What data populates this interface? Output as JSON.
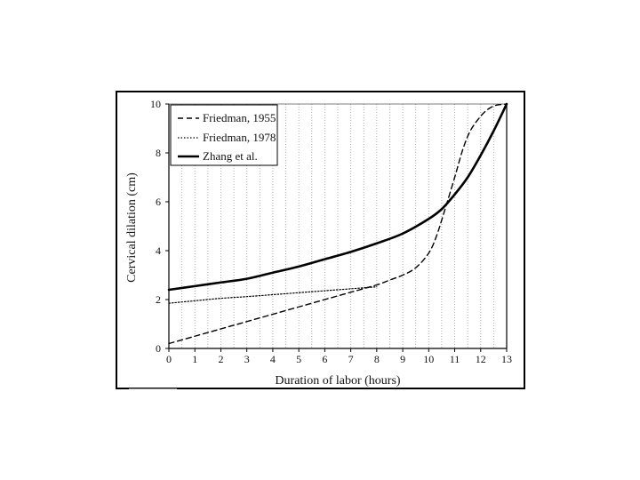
{
  "chart_data": {
    "type": "line",
    "xlabel": "Duration of labor (hours)",
    "ylabel": "Cervical dilation (cm)",
    "xlim": [
      0,
      13
    ],
    "ylim": [
      0,
      10
    ],
    "xticks": [
      "0",
      "1",
      "2",
      "3",
      "4",
      "5",
      "6",
      "7",
      "8",
      "9",
      "10",
      "11",
      "12",
      "13"
    ],
    "yticks": [
      "0",
      "2",
      "4",
      "6",
      "8",
      "10"
    ],
    "grid": "vertical dotted lines every 0.5 hour",
    "legend_position": "top-left",
    "series": [
      {
        "name": "Friedman, 1955",
        "style": "dashed",
        "x": [
          0,
          1,
          2,
          3,
          4,
          5,
          6,
          7,
          8,
          8.5,
          9,
          9.5,
          10,
          10.3,
          10.6,
          11,
          11.3,
          11.6,
          12,
          12.3,
          12.6,
          13
        ],
        "y": [
          0.2,
          0.5,
          0.8,
          1.1,
          1.4,
          1.7,
          2.0,
          2.3,
          2.6,
          2.8,
          3.0,
          3.3,
          3.9,
          4.6,
          5.6,
          7.0,
          8.1,
          8.9,
          9.5,
          9.8,
          9.95,
          10
        ]
      },
      {
        "name": "Friedman, 1978",
        "style": "dotted",
        "x": [
          0,
          1,
          2,
          3,
          4,
          5,
          6,
          7,
          8
        ],
        "y": [
          1.85,
          1.95,
          2.05,
          2.12,
          2.2,
          2.28,
          2.36,
          2.44,
          2.52
        ]
      },
      {
        "name": "Zhang et al.",
        "style": "solid",
        "x": [
          0,
          1,
          2,
          3,
          4,
          5,
          6,
          7,
          8,
          9,
          10,
          10.5,
          11,
          11.5,
          12,
          12.5,
          13
        ],
        "y": [
          2.4,
          2.55,
          2.7,
          2.85,
          3.1,
          3.35,
          3.65,
          3.95,
          4.3,
          4.7,
          5.3,
          5.7,
          6.3,
          7.0,
          7.9,
          8.9,
          10
        ]
      }
    ]
  }
}
